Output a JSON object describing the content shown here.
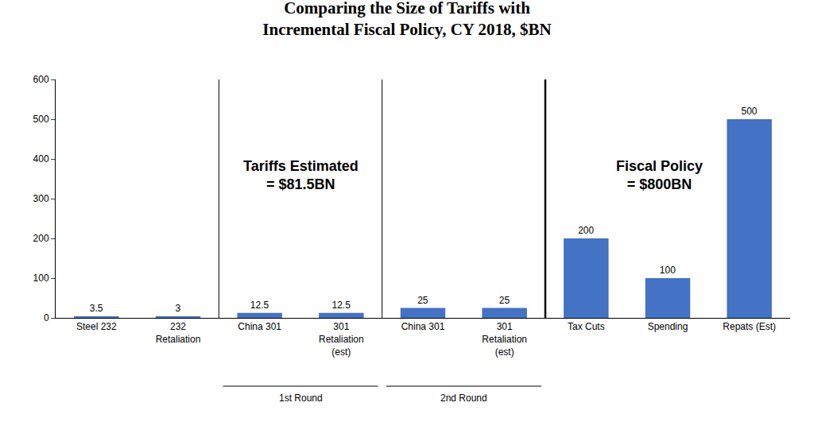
{
  "chart_data": {
    "type": "bar",
    "title": "Comparing the Size of Tariffs with\nIncremental Fiscal Policy, CY 2018, $BN",
    "categories": [
      "Steel 232",
      "232\nRetaliation",
      "China 301",
      "301\nRetaliation\n(est)",
      "China 301",
      "301\nRetaliation\n(est)",
      "Tax Cuts",
      "Spending",
      "Repats (Est)"
    ],
    "values": [
      3.5,
      3,
      12.5,
      12.5,
      25,
      25,
      200,
      100,
      500
    ],
    "color": "#4472c4",
    "ylim": [
      0,
      600
    ],
    "yticks": [
      0,
      100,
      200,
      300,
      400,
      500,
      600
    ],
    "grid": false,
    "data_labels": true,
    "annotations": [
      "Tariffs Estimated\n= $81.5BN",
      "Fiscal Policy\n= $800BN",
      "1st Round",
      "2nd Round"
    ]
  }
}
